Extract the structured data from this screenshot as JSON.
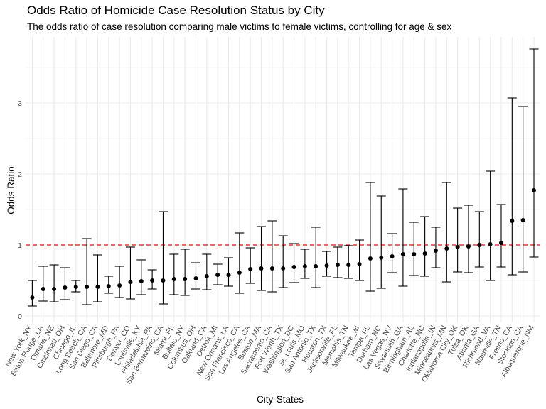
{
  "title": "Odds Ratio of Homicide Case Resolution Status by City",
  "subtitle": "The odds ratio of case resolution comparing male victims to female victims, controlling for age & sex",
  "chart_data": {
    "type": "scatter",
    "title": "Odds Ratio of Homicide Case Resolution Status by City",
    "subtitle": "The odds ratio of case resolution comparing male victims to female victims, controlling for age & sex",
    "xlabel": "City-States",
    "ylabel": "Odds Ratio",
    "ylim": [
      0,
      4.0
    ],
    "yticks": [
      0,
      1,
      2,
      3
    ],
    "grid": true,
    "reference_line": {
      "y": 1,
      "color": "#ff0000",
      "style": "dashed"
    },
    "categories": [
      "New York_NY",
      "Baton Rouge_LA",
      "Omaha_NE",
      "Cincinnati_OH",
      "Chicago_IL",
      "Long Beach_CA",
      "San Diego_CA",
      "Baltimore_MD",
      "Pittsburgh_PA",
      "Denver_CO",
      "Louisville_KY",
      "Philadelphia_PA",
      "San Bernardino_CA",
      "Miami_FL",
      "Buffalo_NY",
      "Columbus_OH",
      "Oakland_CA",
      "Detroit_MI",
      "New Orleans_LA",
      "San Francisco_CA",
      "Los Angeles_CA",
      "Boston_MA",
      "Sacramento_CA",
      "Fort Worth_TX",
      "Washington_DC",
      "St. Louis_MO",
      "San Antonio_TX",
      "Houston_TX",
      "Jacksonville_FL",
      "Memphis_TN",
      "Milwaukee_wI",
      "Tampa_FL",
      "Durham_NC",
      "Las Vegas_NV",
      "Savannah_GA",
      "Birmingham_AL",
      "Charlotte_NC",
      "Indianapolis_IN",
      "Minneapolis_MN",
      "Oklahoma City_OK",
      "Tulsa_OK",
      "Atlanta_GA",
      "Richmond_VA",
      "Nashville_TN",
      "Fresno_CA",
      "Stockton_CA",
      "Albuquerque_NM"
    ],
    "series": [
      {
        "estimate": [
          0.26,
          0.38,
          0.38,
          0.4,
          0.41,
          0.41,
          0.41,
          0.42,
          0.43,
          0.48,
          0.49,
          0.5,
          0.5,
          0.52,
          0.52,
          0.53,
          0.56,
          0.58,
          0.58,
          0.61,
          0.66,
          0.67,
          0.67,
          0.67,
          0.69,
          0.7,
          0.7,
          0.71,
          0.72,
          0.72,
          0.73,
          0.81,
          0.82,
          0.84,
          0.87,
          0.87,
          0.88,
          0.92,
          0.95,
          0.97,
          0.98,
          1.0,
          1.01,
          1.03,
          1.34,
          1.35,
          1.77
        ],
        "lower": [
          0.14,
          0.21,
          0.2,
          0.23,
          0.34,
          0.16,
          0.2,
          0.32,
          0.26,
          0.24,
          0.3,
          0.38,
          0.17,
          0.3,
          0.29,
          0.38,
          0.37,
          0.44,
          0.42,
          0.32,
          0.46,
          0.36,
          0.34,
          0.4,
          0.47,
          0.53,
          0.4,
          0.56,
          0.54,
          0.53,
          0.5,
          0.35,
          0.39,
          0.61,
          0.42,
          0.57,
          0.56,
          0.68,
          0.48,
          0.62,
          0.61,
          0.69,
          0.5,
          0.69,
          0.58,
          0.62,
          0.83
        ],
        "upper": [
          0.5,
          0.7,
          0.72,
          0.68,
          0.5,
          1.09,
          0.86,
          0.56,
          0.7,
          0.97,
          0.79,
          0.65,
          1.47,
          0.87,
          0.94,
          0.75,
          0.87,
          0.73,
          0.82,
          1.17,
          0.96,
          1.26,
          1.34,
          1.13,
          1.02,
          0.94,
          1.25,
          0.91,
          0.97,
          0.99,
          1.07,
          1.88,
          1.69,
          1.16,
          1.79,
          1.32,
          1.4,
          1.25,
          1.88,
          1.52,
          1.56,
          1.47,
          2.04,
          1.57,
          3.07,
          2.95,
          3.76
        ]
      }
    ]
  }
}
